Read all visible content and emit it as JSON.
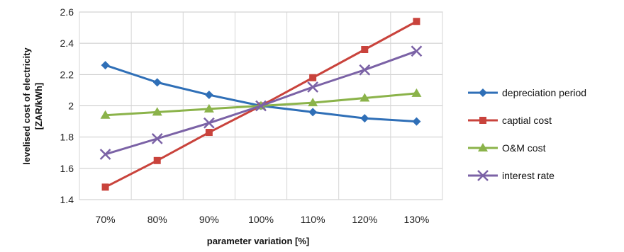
{
  "chart_data": {
    "type": "line",
    "title": "",
    "xlabel": "parameter variation [%]",
    "ylabel_line1": "levelised cost of electricity",
    "ylabel_line2": "[ZAR/kWh]",
    "categories": [
      "70%",
      "80%",
      "90%",
      "100%",
      "110%",
      "120%",
      "130%"
    ],
    "ylim": [
      1.4,
      2.6
    ],
    "yticks": [
      1.4,
      1.6,
      1.8,
      2,
      2.2,
      2.4,
      2.6
    ],
    "ytick_labels": [
      "1.4",
      "1.6",
      "1.8",
      "2",
      "2.2",
      "2.4",
      "2.6"
    ],
    "grid": true,
    "legend_position": "right",
    "series": [
      {
        "name": "depreciation period",
        "color": "#2f6fb7",
        "marker": "diamond",
        "values": [
          2.26,
          2.15,
          2.07,
          2.0,
          1.96,
          1.92,
          1.9
        ]
      },
      {
        "name": "captial cost",
        "color": "#c9433c",
        "marker": "square",
        "values": [
          1.48,
          1.65,
          1.83,
          2.0,
          2.18,
          2.36,
          2.54
        ]
      },
      {
        "name": "O&M cost",
        "color": "#8bb34a",
        "marker": "triangle",
        "values": [
          1.94,
          1.96,
          1.98,
          2.0,
          2.02,
          2.05,
          2.08
        ]
      },
      {
        "name": "interest rate",
        "color": "#7b62a6",
        "marker": "x",
        "values": [
          1.69,
          1.79,
          1.89,
          2.0,
          2.12,
          2.23,
          2.35
        ]
      }
    ]
  }
}
